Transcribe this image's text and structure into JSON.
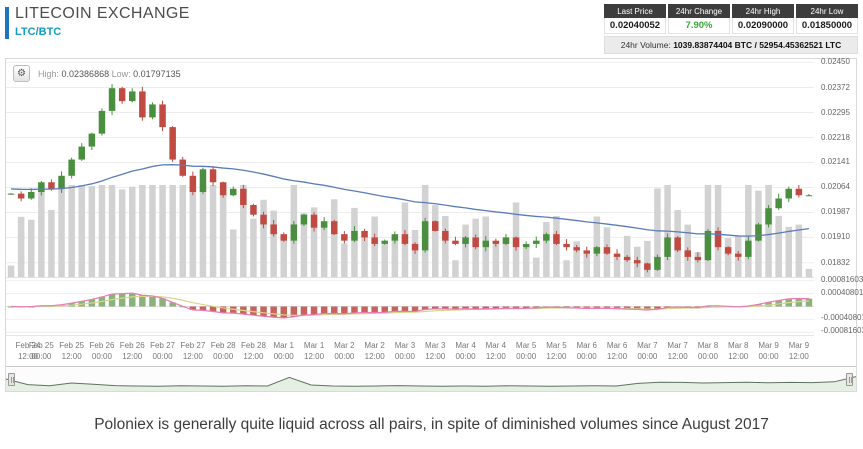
{
  "header": {
    "title": "LITECOIN EXCHANGE",
    "pair": "LTC/BTC",
    "stats": [
      {
        "label": "Last Price",
        "value": "0.02040052",
        "value_color": "#1a1a1a"
      },
      {
        "label": "24hr Change",
        "value": "7.90%",
        "value_color": "#3da53d"
      },
      {
        "label": "24hr High",
        "value": "0.02090000",
        "value_color": "#1a1a1a"
      },
      {
        "label": "24hr Low",
        "value": "0.01850000",
        "value_color": "#1a1a1a"
      }
    ],
    "volume_label": "24hr Volume:",
    "volume_value": "1039.83874404 BTC / 52954.45362521 LTC"
  },
  "chart": {
    "range_high_label": "High:",
    "range_high": "0.02386868",
    "range_low_label": "Low:",
    "range_low": "0.01797135",
    "gear_icon": "⚙",
    "y_axis_labels": [
      "0.02450",
      "0.02372",
      "0.02295",
      "0.02218",
      "0.02141",
      "0.02064",
      "0.01987",
      "0.01910",
      "0.01832"
    ],
    "macd_axis_labels": [
      "0.00081603",
      "0.00040801",
      "-0.00040801",
      "-0.00081603"
    ],
    "x_labels": [
      {
        "d": "Feb 24",
        "t": "12:00"
      },
      {
        "d": "Feb 25",
        "t": "00:00"
      },
      {
        "d": "Feb 25",
        "t": "12:00"
      },
      {
        "d": "Feb 26",
        "t": "00:00"
      },
      {
        "d": "Feb 26",
        "t": "12:00"
      },
      {
        "d": "Feb 27",
        "t": "00:00"
      },
      {
        "d": "Feb 27",
        "t": "12:00"
      },
      {
        "d": "Feb 28",
        "t": "00:00"
      },
      {
        "d": "Feb 28",
        "t": "12:00"
      },
      {
        "d": "Mar 1",
        "t": "00:00"
      },
      {
        "d": "Mar 1",
        "t": "12:00"
      },
      {
        "d": "Mar 2",
        "t": "00:00"
      },
      {
        "d": "Mar 2",
        "t": "12:00"
      },
      {
        "d": "Mar 3",
        "t": "00:00"
      },
      {
        "d": "Mar 3",
        "t": "12:00"
      },
      {
        "d": "Mar 4",
        "t": "00:00"
      },
      {
        "d": "Mar 4",
        "t": "12:00"
      },
      {
        "d": "Mar 5",
        "t": "00:00"
      },
      {
        "d": "Mar 5",
        "t": "12:00"
      },
      {
        "d": "Mar 6",
        "t": "00:00"
      },
      {
        "d": "Mar 6",
        "t": "12:00"
      },
      {
        "d": "Mar 7",
        "t": "00:00"
      },
      {
        "d": "Mar 7",
        "t": "12:00"
      },
      {
        "d": "Mar 8",
        "t": "00:00"
      },
      {
        "d": "Mar 8",
        "t": "12:00"
      },
      {
        "d": "Mar 9",
        "t": "00:00"
      },
      {
        "d": "Mar 9",
        "t": "12:00"
      }
    ]
  },
  "chart_data": {
    "type": "candlestick",
    "pair": "LTC/BTC",
    "price_domain": [
      0.01788,
      0.0246
    ],
    "macd_domain": [
      -0.0009,
      0.0009
    ],
    "closes": [
      0.02045,
      0.0203,
      0.0205,
      0.0208,
      0.0206,
      0.021,
      0.0215,
      0.0219,
      0.0223,
      0.023,
      0.0237,
      0.0233,
      0.0236,
      0.0228,
      0.0232,
      0.0225,
      0.0215,
      0.021,
      0.0205,
      0.0212,
      0.0208,
      0.0204,
      0.0206,
      0.0201,
      0.0198,
      0.0195,
      0.0192,
      0.019,
      0.0195,
      0.0198,
      0.0194,
      0.0196,
      0.0192,
      0.019,
      0.0193,
      0.0191,
      0.0189,
      0.019,
      0.0192,
      0.0189,
      0.0187,
      0.0196,
      0.0193,
      0.019,
      0.0189,
      0.0191,
      0.0188,
      0.019,
      0.0189,
      0.0191,
      0.0188,
      0.0189,
      0.019,
      0.0192,
      0.0189,
      0.0188,
      0.0187,
      0.0186,
      0.0188,
      0.0186,
      0.0185,
      0.0184,
      0.0183,
      0.0181,
      0.0185,
      0.0191,
      0.0187,
      0.0185,
      0.0184,
      0.0193,
      0.0188,
      0.0186,
      0.0185,
      0.019,
      0.0195,
      0.02,
      0.0203,
      0.0206,
      0.0204,
      0.0204
    ],
    "navigator": [
      0.5,
      0.22,
      0.16,
      0.3,
      0.24,
      0.17,
      0.15,
      0.14,
      0.16,
      0.15,
      0.14,
      0.16,
      0.15,
      0.58,
      0.2,
      0.15,
      0.14,
      0.15,
      0.17,
      0.15,
      0.14,
      0.15,
      0.14,
      0.16,
      0.15,
      0.14,
      0.15,
      0.16,
      0.15,
      0.28,
      0.34,
      0.33,
      0.3,
      0.32,
      0.34,
      0.31,
      0.33,
      0.32,
      0.36,
      0.62
    ]
  },
  "colors": {
    "accent_bar": "#1c75bc",
    "pair": "#169bc4",
    "candle_up": "#4a8f3f",
    "candle_down": "#bf4b43",
    "ma_line": "#5b7cb8",
    "volume_bar": "#d2d2d2",
    "macd_pos": "#7cab6d",
    "macd_neg": "#c2514b",
    "macd_line": "#e87cb4",
    "macd_signal": "#d6d68e",
    "nav_fill": "#e6efe4",
    "nav_line": "#5f7360"
  },
  "caption": "Poloniex is generally quite liquid across all pairs, in spite of diminished volumes since August 2017"
}
